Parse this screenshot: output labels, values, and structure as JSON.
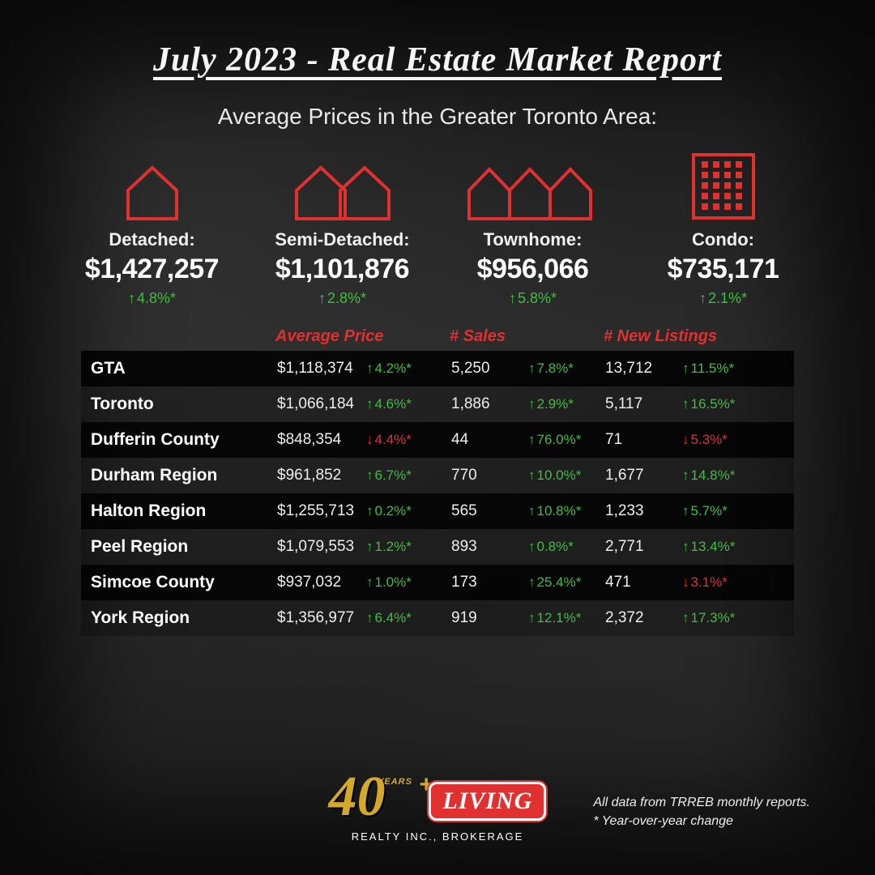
{
  "colors": {
    "accent_red": "#e03030",
    "accent_green": "#3fbf3f",
    "accent_gold": "#d4a82a",
    "background": "#2a2a2a"
  },
  "title": "July 2023 - Real Estate Market Report",
  "subtitle": "Average Prices in the Greater Toronto Area:",
  "property_types": [
    {
      "icon": "detached",
      "label": "Detached:",
      "price": "$1,427,257",
      "change": "4.8%*",
      "dir": "up"
    },
    {
      "icon": "semi",
      "label": "Semi-Detached:",
      "price": "$1,101,876",
      "change": "2.8%*",
      "dir": "up"
    },
    {
      "icon": "town",
      "label": "Townhome:",
      "price": "$956,066",
      "change": "5.8%*",
      "dir": "up"
    },
    {
      "icon": "condo",
      "label": "Condo:",
      "price": "$735,171",
      "change": "2.1%*",
      "dir": "up"
    }
  ],
  "table": {
    "headers": [
      "",
      "Average Price",
      "# Sales",
      "# New Listings"
    ],
    "rows": [
      {
        "region": "GTA",
        "price": "$1,118,374",
        "price_chg": "4.2%*",
        "price_dir": "up",
        "sales": "5,250",
        "sales_chg": "7.8%*",
        "sales_dir": "up",
        "listings": "13,712",
        "listings_chg": "11.5%*",
        "listings_dir": "up",
        "shade": "dark"
      },
      {
        "region": "Toronto",
        "price": "$1,066,184",
        "price_chg": "4.6%*",
        "price_dir": "up",
        "sales": "1,886",
        "sales_chg": "2.9%*",
        "sales_dir": "up",
        "listings": "5,117",
        "listings_chg": "16.5%*",
        "listings_dir": "up",
        "shade": "light"
      },
      {
        "region": "Dufferin County",
        "price": "$848,354",
        "price_chg": "4.4%*",
        "price_dir": "down",
        "sales": "44",
        "sales_chg": "76.0%*",
        "sales_dir": "up",
        "listings": "71",
        "listings_chg": "5.3%*",
        "listings_dir": "down",
        "shade": "dark"
      },
      {
        "region": "Durham Region",
        "price": "$961,852",
        "price_chg": "6.7%*",
        "price_dir": "up",
        "sales": "770",
        "sales_chg": "10.0%*",
        "sales_dir": "up",
        "listings": "1,677",
        "listings_chg": "14.8%*",
        "listings_dir": "up",
        "shade": "light"
      },
      {
        "region": "Halton Region",
        "price": "$1,255,713",
        "price_chg": "0.2%*",
        "price_dir": "up",
        "sales": "565",
        "sales_chg": "10.8%*",
        "sales_dir": "up",
        "listings": "1,233",
        "listings_chg": "5.7%*",
        "listings_dir": "up",
        "shade": "dark"
      },
      {
        "region": "Peel Region",
        "price": "$1,079,553",
        "price_chg": "1.2%*",
        "price_dir": "up",
        "sales": "893",
        "sales_chg": "0.8%*",
        "sales_dir": "up",
        "listings": "2,771",
        "listings_chg": "13.4%*",
        "listings_dir": "up",
        "shade": "light"
      },
      {
        "region": "Simcoe County",
        "price": "$937,032",
        "price_chg": "1.0%*",
        "price_dir": "up",
        "sales": "173",
        "sales_chg": "25.4%*",
        "sales_dir": "up",
        "listings": "471",
        "listings_chg": "3.1%*",
        "listings_dir": "down",
        "shade": "dark"
      },
      {
        "region": "York Region",
        "price": "$1,356,977",
        "price_chg": "6.4%*",
        "price_dir": "up",
        "sales": "919",
        "sales_chg": "12.1%*",
        "sales_dir": "up",
        "listings": "2,372",
        "listings_chg": "17.3%*",
        "listings_dir": "up",
        "shade": "light"
      }
    ]
  },
  "logo": {
    "forty": "40",
    "years": "YEARS",
    "plus": "+",
    "brand": "LIVING",
    "tagline": "REALTY INC., BROKERAGE"
  },
  "disclaimer_line1": "All data from TRREB monthly reports.",
  "disclaimer_line2": "* Year-over-year change"
}
